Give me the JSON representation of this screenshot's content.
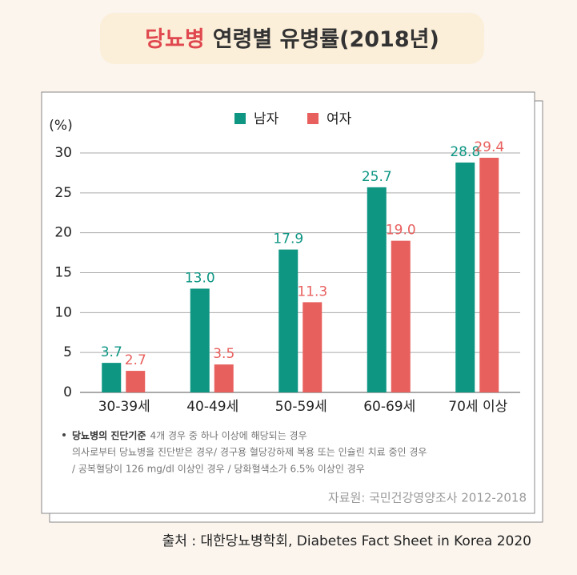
{
  "chart_data": {
    "type": "bar",
    "title_highlight": "당뇨병",
    "title": "연령별 유병률(2018년)",
    "y_label": "(%)",
    "categories": [
      "30-39세",
      "40-49세",
      "50-59세",
      "60-69세",
      "70세 이상"
    ],
    "series": [
      {
        "name": "남자",
        "color": "#0e9683",
        "values": [
          3.7,
          13.0,
          17.9,
          25.7,
          28.8
        ],
        "value_labels": [
          "3.7",
          "13.0",
          "17.9",
          "25.7",
          "28.8"
        ]
      },
      {
        "name": "여자",
        "color": "#e8605e",
        "values": [
          2.7,
          3.5,
          11.3,
          19.0,
          29.4
        ],
        "value_labels": [
          "2.7",
          "3.5",
          "11.3",
          "19.0",
          "29.4"
        ]
      }
    ],
    "ylim": [
      0,
      30
    ],
    "yticks": [
      0,
      5,
      10,
      15,
      20,
      25,
      30
    ],
    "grid": true,
    "legend": "top",
    "note": {
      "label": "당뇨병의 진단기준",
      "text": "4개 경우 중 하나 이상에 해당되는 경우",
      "lines": [
        "의사로부터 당뇨병을 진단받은 경우/ 경구용 혈당강하제 복용 또는 인슐린 치료 중인 경우",
        "/ 공복혈당이 126 mg/dl 이상인 경우 / 당화혈색소가 6.5% 이상인 경우"
      ]
    },
    "source": "자료원: 국민건강영양조사 2012-2018",
    "citation": "출처 : 대한당뇨병학회, Diabetes Fact Sheet in Korea 2020"
  }
}
